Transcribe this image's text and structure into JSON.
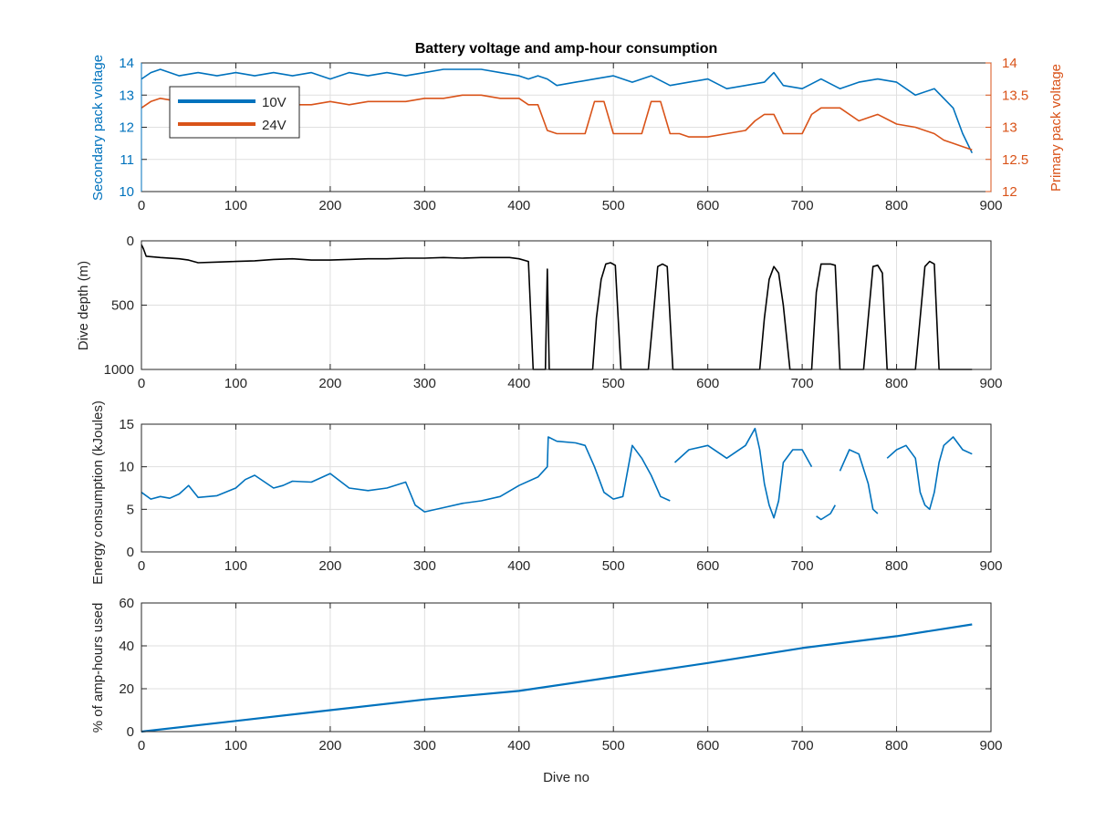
{
  "chart_data": [
    {
      "type": "line",
      "title": "Battery voltage and amp-hour consumption",
      "xlabel": "",
      "ylabel_left": "Secondary pack voltage",
      "ylabel_right": "Primary pack voltage",
      "xlim": [
        0,
        900
      ],
      "ylim_left": [
        10,
        14
      ],
      "ylim_right": [
        12,
        14
      ],
      "xticks": [
        "0",
        "100",
        "200",
        "300",
        "400",
        "500",
        "600",
        "700",
        "800",
        "900"
      ],
      "yticks_left": [
        "10",
        "11",
        "12",
        "13",
        "14"
      ],
      "yticks_right": [
        "12",
        "12.5",
        "13",
        "13.5",
        "14"
      ],
      "grid": true,
      "legend_position": "top-left",
      "colors": {
        "10V": "#0072BD",
        "24V": "#D95319"
      },
      "series": [
        {
          "name": "10V",
          "axis": "left",
          "x": [
            0,
            10,
            20,
            40,
            60,
            80,
            100,
            120,
            140,
            160,
            180,
            200,
            220,
            240,
            260,
            280,
            300,
            320,
            340,
            360,
            380,
            400,
            410,
            420,
            430,
            440,
            460,
            480,
            500,
            520,
            540,
            560,
            580,
            600,
            620,
            640,
            660,
            670,
            680,
            700,
            720,
            740,
            760,
            780,
            800,
            820,
            840,
            860,
            870,
            880
          ],
          "y": [
            13.5,
            13.7,
            13.8,
            13.6,
            13.7,
            13.6,
            13.7,
            13.6,
            13.7,
            13.6,
            13.7,
            13.5,
            13.7,
            13.6,
            13.7,
            13.6,
            13.7,
            13.8,
            13.8,
            13.8,
            13.7,
            13.6,
            13.5,
            13.6,
            13.5,
            13.3,
            13.4,
            13.5,
            13.6,
            13.4,
            13.6,
            13.3,
            13.4,
            13.5,
            13.2,
            13.3,
            13.4,
            13.7,
            13.3,
            13.2,
            13.5,
            13.2,
            13.4,
            13.5,
            13.4,
            13.0,
            13.2,
            12.6,
            11.8,
            11.2
          ]
        },
        {
          "name": "24V",
          "axis": "right",
          "x": [
            0,
            10,
            20,
            40,
            60,
            80,
            100,
            120,
            140,
            160,
            180,
            200,
            220,
            240,
            260,
            280,
            300,
            320,
            340,
            360,
            380,
            400,
            410,
            420,
            430,
            440,
            460,
            470,
            480,
            490,
            500,
            520,
            530,
            540,
            550,
            560,
            570,
            580,
            600,
            620,
            640,
            650,
            660,
            670,
            680,
            700,
            710,
            720,
            740,
            760,
            780,
            800,
            820,
            840,
            850,
            860,
            870,
            880
          ],
          "y": [
            13.3,
            13.4,
            13.45,
            13.4,
            13.45,
            13.4,
            13.45,
            13.4,
            13.4,
            13.35,
            13.35,
            13.4,
            13.35,
            13.4,
            13.4,
            13.4,
            13.45,
            13.45,
            13.5,
            13.5,
            13.45,
            13.45,
            13.35,
            13.35,
            12.95,
            12.9,
            12.9,
            12.9,
            13.4,
            13.4,
            12.9,
            12.9,
            12.9,
            13.4,
            13.4,
            12.9,
            12.9,
            12.85,
            12.85,
            12.9,
            12.95,
            13.1,
            13.2,
            13.2,
            12.9,
            12.9,
            13.2,
            13.3,
            13.3,
            13.1,
            13.2,
            13.05,
            13.0,
            12.9,
            12.8,
            12.75,
            12.7,
            12.65
          ]
        }
      ]
    },
    {
      "type": "line",
      "title": "",
      "xlabel": "",
      "ylabel": "Dive depth (m)",
      "xlim": [
        0,
        900
      ],
      "ylim": [
        0,
        1000
      ],
      "y_reversed": true,
      "xticks": [
        "0",
        "100",
        "200",
        "300",
        "400",
        "500",
        "600",
        "700",
        "800",
        "900"
      ],
      "yticks": [
        "0",
        "500",
        "1000"
      ],
      "grid": true,
      "colors": {
        "depth": "#000000"
      },
      "series": [
        {
          "name": "",
          "x": [
            0,
            2,
            5,
            20,
            40,
            50,
            60,
            80,
            100,
            120,
            140,
            160,
            180,
            200,
            220,
            240,
            260,
            280,
            300,
            320,
            340,
            360,
            380,
            390,
            400,
            410,
            415,
            420,
            425,
            428,
            430,
            432,
            433,
            436,
            440,
            460,
            478,
            482,
            487,
            492,
            497,
            502,
            508,
            530,
            537,
            542,
            547,
            552,
            557,
            563,
            570,
            600,
            630,
            655,
            660,
            665,
            670,
            675,
            680,
            687,
            705,
            710,
            715,
            720,
            730,
            735,
            740,
            750,
            765,
            770,
            775,
            780,
            785,
            790,
            800,
            820,
            825,
            830,
            835,
            840,
            845,
            855,
            870,
            880
          ],
          "y": [
            30,
            60,
            120,
            130,
            140,
            150,
            170,
            165,
            160,
            155,
            145,
            140,
            150,
            150,
            145,
            140,
            140,
            135,
            135,
            130,
            135,
            130,
            130,
            130,
            140,
            160,
            1000,
            1000,
            1000,
            1000,
            220,
            1000,
            1000,
            1000,
            1000,
            1000,
            1000,
            600,
            300,
            180,
            170,
            190,
            1000,
            1000,
            1000,
            600,
            200,
            180,
            200,
            1000,
            1000,
            1000,
            1000,
            1000,
            600,
            300,
            200,
            250,
            500,
            1000,
            1000,
            1000,
            400,
            180,
            180,
            190,
            1000,
            1000,
            1000,
            600,
            200,
            190,
            250,
            1000,
            1000,
            1000,
            600,
            200,
            160,
            180,
            1000,
            1000,
            1000,
            1000
          ]
        }
      ]
    },
    {
      "type": "line",
      "title": "",
      "xlabel": "",
      "ylabel": "Energy consumption (kJoules)",
      "xlim": [
        0,
        900
      ],
      "ylim": [
        0,
        15
      ],
      "xticks": [
        "0",
        "100",
        "200",
        "300",
        "400",
        "500",
        "600",
        "700",
        "800",
        "900"
      ],
      "yticks": [
        "0",
        "5",
        "10",
        "15"
      ],
      "grid": true,
      "colors": {
        "energy": "#0072BD"
      },
      "series": [
        {
          "name": "",
          "x": [
            0,
            10,
            20,
            30,
            40,
            50,
            60,
            80,
            100,
            110,
            120,
            140,
            150,
            160,
            180,
            200,
            220,
            240,
            260,
            280,
            290,
            300,
            320,
            340,
            360,
            380,
            400,
            420,
            430,
            431,
            440,
            460,
            470,
            480,
            490,
            500,
            510,
            520,
            530,
            540,
            550,
            560
          ],
          "y": [
            7,
            6.2,
            6.5,
            6.3,
            6.8,
            7.8,
            6.4,
            6.6,
            7.5,
            8.5,
            9.0,
            7.5,
            7.8,
            8.3,
            8.2,
            9.2,
            7.5,
            7.2,
            7.5,
            8.2,
            5.5,
            4.7,
            5.2,
            5.7,
            6.0,
            6.5,
            7.8,
            8.8,
            10.0,
            13.5,
            13.0,
            12.8,
            12.5,
            10.0,
            7.0,
            6.2,
            6.5,
            12.5,
            11.0,
            9.0,
            6.5,
            6.0
          ]
        },
        {
          "name": "",
          "x": [
            565,
            580,
            600,
            620,
            640,
            650,
            655,
            660,
            665,
            670,
            675,
            680,
            690,
            700,
            710
          ],
          "y": [
            10.5,
            12.0,
            12.5,
            11.0,
            12.5,
            14.5,
            12.0,
            8.0,
            5.5,
            4.0,
            6.0,
            10.5,
            12.0,
            12.0,
            10.0
          ]
        },
        {
          "name": "",
          "x": [
            715,
            720,
            730,
            735
          ],
          "y": [
            4.2,
            3.8,
            4.5,
            5.5
          ]
        },
        {
          "name": "",
          "x": [
            740,
            750,
            760,
            770,
            775,
            780
          ],
          "y": [
            9.5,
            12.0,
            11.5,
            8.0,
            5.0,
            4.5
          ]
        },
        {
          "name": "",
          "x": [
            790,
            800,
            810,
            820,
            825,
            830,
            835,
            840,
            845,
            850,
            860,
            870,
            880
          ],
          "y": [
            11.0,
            12.0,
            12.5,
            11.0,
            7.0,
            5.5,
            5.0,
            7.0,
            10.5,
            12.5,
            13.5,
            12.0,
            11.5
          ]
        }
      ]
    },
    {
      "type": "line",
      "title": "",
      "xlabel": "Dive no",
      "ylabel": "% of amp-hours used",
      "xlim": [
        0,
        900
      ],
      "ylim": [
        0,
        60
      ],
      "xticks": [
        "0",
        "100",
        "200",
        "300",
        "400",
        "500",
        "600",
        "700",
        "800",
        "900"
      ],
      "yticks": [
        "0",
        "20",
        "40",
        "60"
      ],
      "grid": true,
      "colors": {
        "amp": "#0072BD"
      },
      "series": [
        {
          "name": "",
          "x": [
            0,
            100,
            200,
            300,
            400,
            500,
            600,
            700,
            800,
            880
          ],
          "y": [
            0,
            5,
            10,
            15,
            19,
            25.5,
            32,
            39,
            44.5,
            50
          ]
        }
      ]
    }
  ]
}
